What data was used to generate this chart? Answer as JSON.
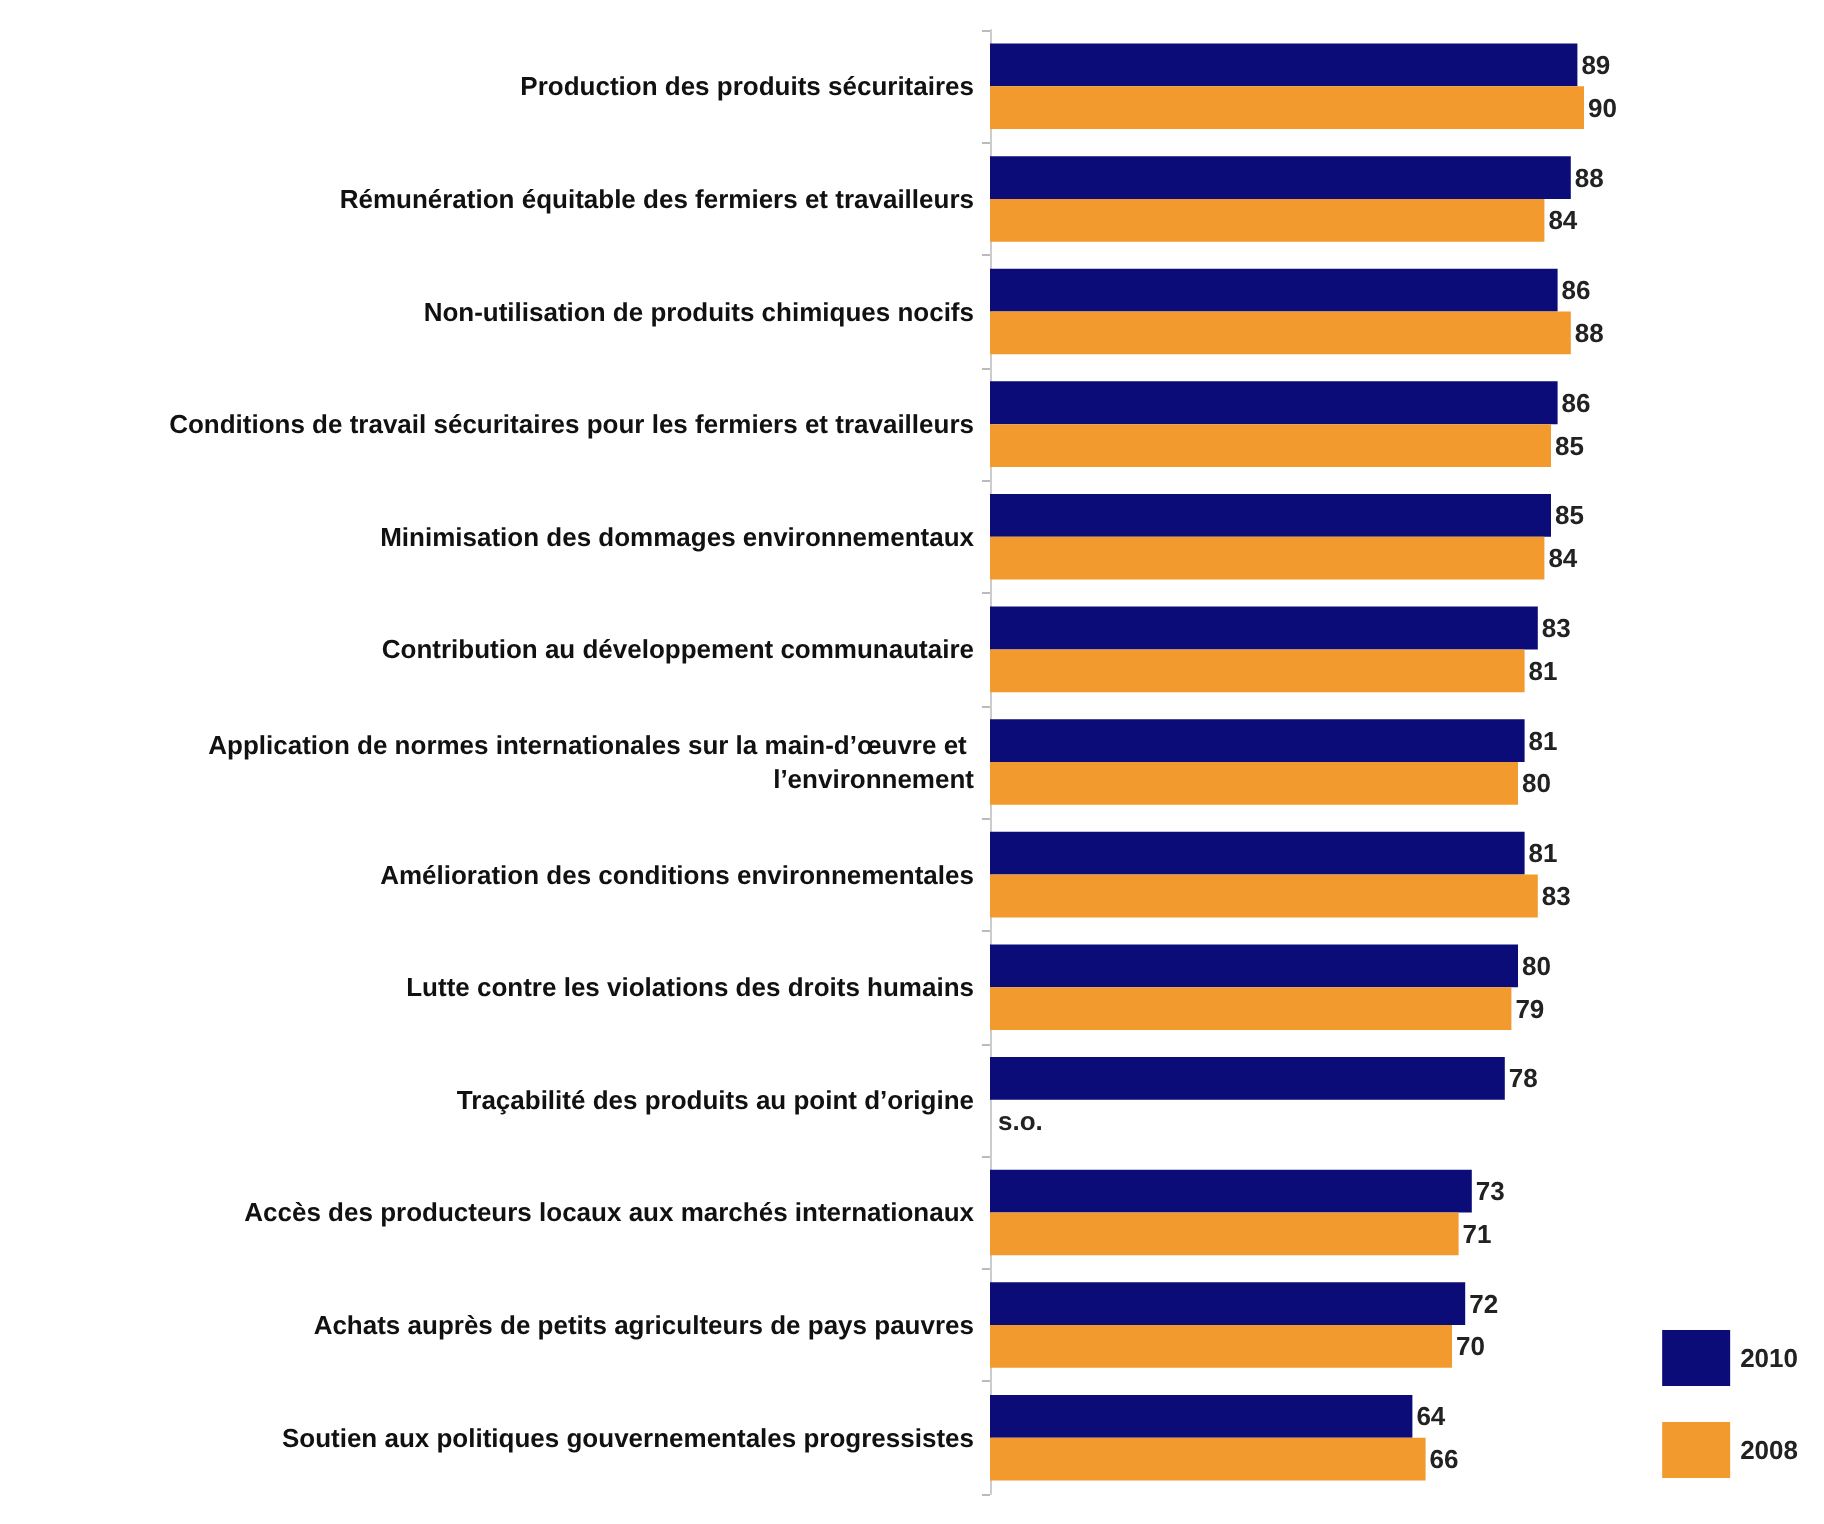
{
  "chart_data": {
    "type": "bar",
    "orientation": "horizontal",
    "categories": [
      "Production des produits sécuritaires",
      "Rémunération équitable des fermiers et travailleurs",
      "Non-utilisation de produits chimiques nocifs",
      "Conditions de travail sécuritaires pour les fermiers et travailleurs",
      "Minimisation des dommages environnementaux",
      "Contribution au développement communautaire",
      "Application de normes internationales sur la main-d’œuvre et l’environnement",
      "Amélioration des conditions environnementales",
      "Lutte contre les violations des droits humains",
      "Traçabilité des produits au point d’origine",
      "Accès des producteurs locaux aux marchés internationaux",
      "Achats auprès de petits agriculteurs de pays pauvres",
      "Soutien aux politiques gouvernementales progressistes"
    ],
    "series": [
      {
        "name": "2010",
        "color": "#0c0c78",
        "values": [
          89,
          88,
          86,
          86,
          85,
          83,
          81,
          81,
          80,
          78,
          73,
          72,
          64
        ]
      },
      {
        "name": "2008",
        "color": "#f39a2e",
        "values": [
          90,
          84,
          88,
          85,
          84,
          81,
          80,
          83,
          79,
          null,
          71,
          70,
          66
        ],
        "value_labels": [
          "90",
          "84",
          "88",
          "85",
          "84",
          "81",
          "80",
          "83",
          "79",
          "s.o.",
          "71",
          "70",
          "66"
        ]
      }
    ],
    "data_labels": true,
    "legend": "bottom right",
    "tick_labels": "y"
  }
}
